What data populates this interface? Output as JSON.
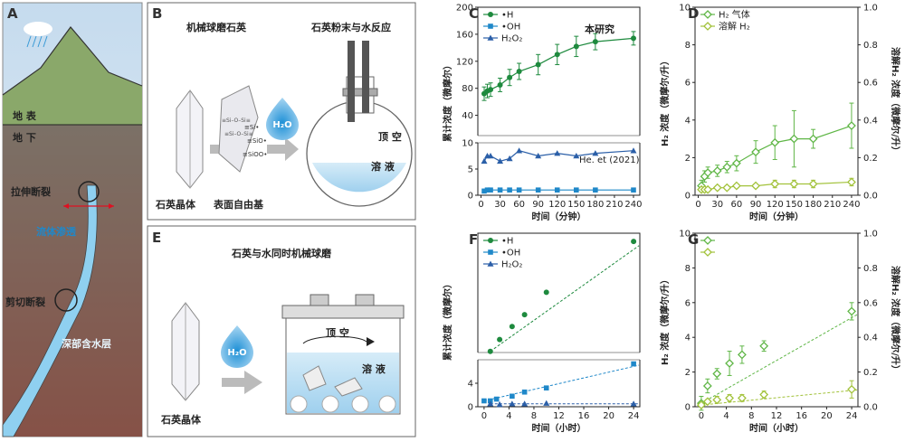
{
  "colors": {
    "H": "#1e8a3e",
    "OH": "#1f88c9",
    "H2O2": "#2b5fa8",
    "h2gas": "#5fb646",
    "h2dis": "#a2c23a",
    "water": "#2f8fd0",
    "sky": "#cfe0ee",
    "ground": "#5a4a3a"
  },
  "panelA": {
    "label": "A",
    "surface": "地 表",
    "underground": "地 下",
    "tension": "拉伸断裂",
    "fluid": "流体渗透",
    "shear": "剪切断裂",
    "aquifer": "深部含水层"
  },
  "panelB": {
    "label": "B",
    "title_left": "机械球磨石英",
    "title_right": "石英粉末与水反应",
    "crystal": "石英晶体",
    "radicals": "表面自由基",
    "h2o": "H₂O",
    "headspace": "顶 空",
    "solution": "溶 液",
    "species": [
      "≡Si•",
      "≡SiO•",
      "≡SiOO•"
    ],
    "surface_text": [
      "≡Si–O–Si≡",
      "≡Si–O–Si≡"
    ]
  },
  "panelE": {
    "label": "E",
    "title": "石英与水同时机械球磨",
    "crystal": "石英晶体",
    "h2o": "H₂O",
    "headspace": "顶 空",
    "solution": "溶 液"
  },
  "chart_data": [
    {
      "id": "C",
      "label": "C",
      "type": "line",
      "xlabel": "时间（分钟）",
      "ylabel": "累计浓度（微摩尔）",
      "xlim": [
        -5,
        250
      ],
      "xticks": [
        0,
        30,
        60,
        90,
        120,
        150,
        180,
        210,
        240
      ],
      "broken_y": true,
      "ylim_upper": [
        10,
        200
      ],
      "yticks_upper": [
        40,
        80,
        120,
        160,
        200
      ],
      "ylim_lower": [
        0,
        10
      ],
      "yticks_lower": [
        0,
        5,
        10
      ],
      "legend": [
        "•H",
        "•OH",
        "H₂O₂"
      ],
      "annotations": [
        "本研究",
        "He. et (2021)"
      ],
      "series": [
        {
          "name": "•H",
          "x": [
            5,
            10,
            15,
            30,
            45,
            60,
            90,
            120,
            150,
            180,
            240
          ],
          "y": [
            72,
            76,
            78,
            85,
            96,
            105,
            115,
            130,
            142,
            149,
            154
          ],
          "err": [
            10,
            10,
            10,
            10,
            12,
            12,
            15,
            15,
            15,
            12,
            10
          ]
        },
        {
          "name": "•OH",
          "x": [
            5,
            10,
            15,
            30,
            45,
            60,
            90,
            120,
            150,
            180,
            240
          ],
          "y": [
            0.8,
            1,
            1,
            1,
            1,
            1,
            1,
            1,
            1,
            1,
            1
          ]
        },
        {
          "name": "H₂O₂",
          "x": [
            5,
            10,
            15,
            30,
            45,
            60,
            90,
            120,
            150,
            180,
            240
          ],
          "y": [
            6.5,
            7.5,
            7.5,
            6.5,
            7,
            8.5,
            7.5,
            8,
            7.5,
            8,
            8.5
          ]
        }
      ]
    },
    {
      "id": "D",
      "label": "D",
      "type": "line",
      "xlabel": "时间（分钟）",
      "ylabel": "H₂ 浓度（微摩尔/升）",
      "ylabel_right": "溶解H₂ 浓度（微摩尔/升）",
      "xlim": [
        -5,
        250
      ],
      "xticks": [
        0,
        30,
        60,
        90,
        120,
        150,
        180,
        210,
        240
      ],
      "ylim": [
        0,
        10
      ],
      "yticks": [
        0,
        2,
        4,
        6,
        8,
        10
      ],
      "ylim_right": [
        0,
        1
      ],
      "yticks_right": [
        "0.0",
        "0.2",
        "0.4",
        "0.6",
        "0.8",
        "1.0"
      ],
      "legend": [
        "H₂ 气体",
        "溶解 H₂"
      ],
      "series": [
        {
          "name": "H₂ 气体",
          "x": [
            5,
            10,
            15,
            30,
            45,
            60,
            90,
            120,
            150,
            180,
            240
          ],
          "y": [
            0.5,
            1.0,
            1.2,
            1.3,
            1.5,
            1.7,
            2.3,
            2.8,
            3.0,
            3.0,
            3.7
          ],
          "err": [
            0.3,
            0.3,
            0.3,
            0.3,
            0.3,
            0.4,
            0.6,
            0.9,
            1.5,
            0.5,
            1.2
          ]
        },
        {
          "name": "溶解 H₂",
          "x": [
            5,
            10,
            15,
            30,
            45,
            60,
            90,
            120,
            150,
            180,
            240
          ],
          "y": [
            0.03,
            0.03,
            0.03,
            0.04,
            0.04,
            0.05,
            0.05,
            0.06,
            0.06,
            0.06,
            0.07
          ],
          "err": [
            0.01,
            0.01,
            0.01,
            0.01,
            0.01,
            0.01,
            0.01,
            0.02,
            0.02,
            0.02,
            0.02
          ]
        }
      ]
    },
    {
      "id": "F",
      "label": "F",
      "type": "scatter",
      "xlabel": "时间（小时）",
      "ylabel": "累计浓度（微摩尔）",
      "xlim": [
        -1,
        25
      ],
      "xticks": [
        0,
        4,
        8,
        12,
        16,
        20,
        24
      ],
      "broken_y": true,
      "ylim_upper": [
        8,
        210
      ],
      "ylim_lower": [
        0,
        8
      ],
      "yticks_lower": [
        0,
        4
      ],
      "legend": [
        "•H",
        "•OH",
        "H₂O₂"
      ],
      "series": [
        {
          "name": "•H",
          "x": [
            1,
            2.5,
            4.5,
            6.5,
            10,
            24
          ],
          "y": [
            10,
            30,
            52,
            72,
            110,
            196
          ]
        },
        {
          "name": "•OH",
          "x": [
            0,
            1,
            2,
            4.5,
            6.5,
            10,
            24
          ],
          "y": [
            1.0,
            1.0,
            1.3,
            1.8,
            2.5,
            3.2,
            7.3
          ]
        },
        {
          "name": "H₂O₂",
          "x": [
            1,
            2.5,
            4.5,
            6.5,
            10,
            24
          ],
          "y": [
            0.5,
            0.4,
            0.5,
            0.5,
            0.6,
            0.5
          ]
        }
      ]
    },
    {
      "id": "G",
      "label": "G",
      "type": "scatter",
      "xlabel": "时间（小时）",
      "ylabel": "H₂ 浓度（微摩尔/升）",
      "ylabel_right": "溶解H₂ 浓度（微摩尔/升）",
      "xlim": [
        -1,
        25
      ],
      "xticks": [
        0,
        4,
        8,
        12,
        16,
        20,
        24
      ],
      "ylim": [
        0,
        10
      ],
      "yticks": [
        0,
        2,
        4,
        6,
        8,
        10
      ],
      "ylim_right": [
        0,
        1
      ],
      "yticks_right": [
        "0.0",
        "0.2",
        "0.4",
        "0.6",
        "0.8",
        "1.0"
      ],
      "series": [
        {
          "name": "H₂ 气体",
          "x": [
            0,
            1,
            2.5,
            4.5,
            6.5,
            10,
            24
          ],
          "y": [
            0.2,
            1.2,
            1.9,
            2.5,
            3.0,
            3.5,
            5.5
          ],
          "err": [
            0.4,
            0.4,
            0.3,
            0.7,
            0.5,
            0.3,
            0.5
          ]
        },
        {
          "name": "溶解 H₂",
          "x": [
            0,
            1,
            2.5,
            4.5,
            6.5,
            10,
            24
          ],
          "y": [
            0.01,
            0.03,
            0.04,
            0.05,
            0.05,
            0.07,
            0.1
          ],
          "err": [
            0.01,
            0.01,
            0.02,
            0.02,
            0.02,
            0.02,
            0.05
          ]
        }
      ]
    }
  ]
}
